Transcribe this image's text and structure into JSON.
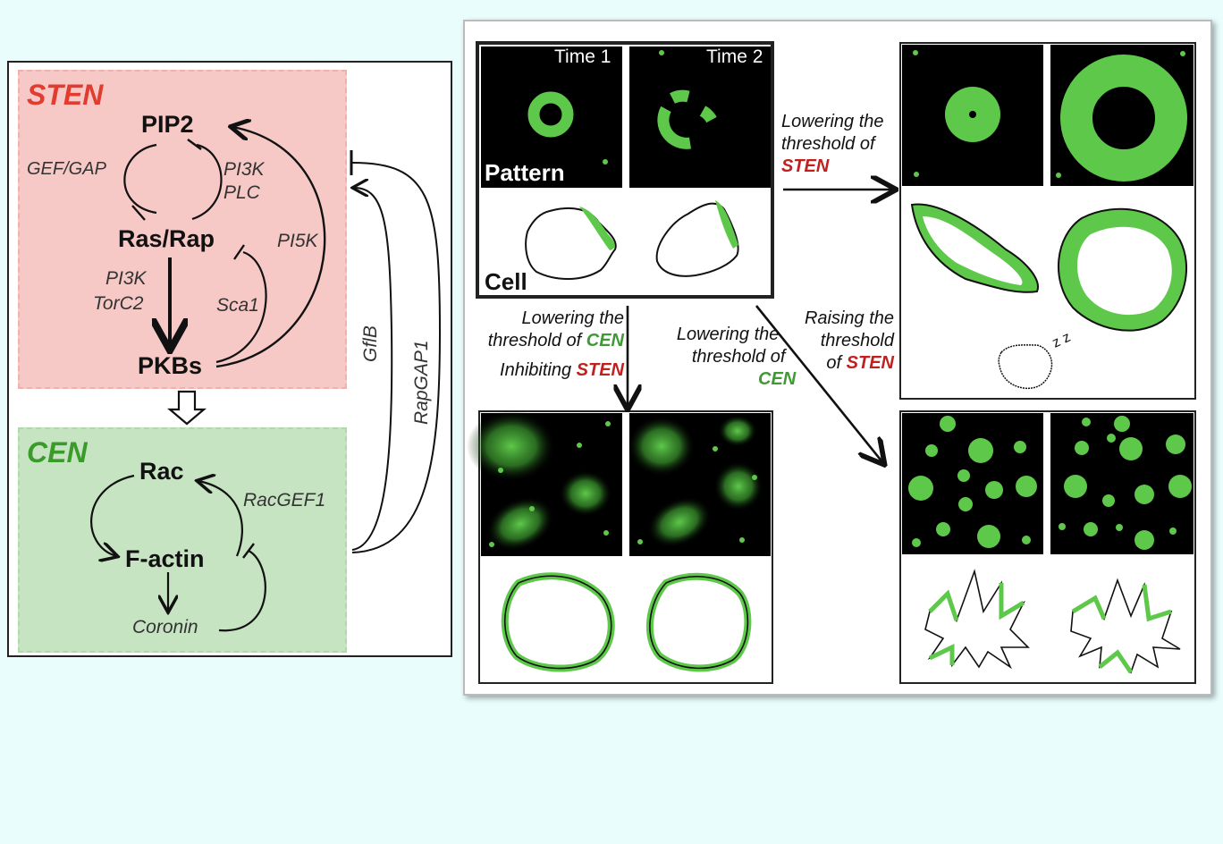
{
  "left": {
    "sten_title": "STEN",
    "cen_title": "CEN",
    "nodes": {
      "pip2": "PIP2",
      "rasrap": "Ras/Rap",
      "pkbs": "PKBs",
      "rac": "Rac",
      "factin": "F-actin",
      "coronin": "Coronin"
    },
    "edges": {
      "gefgap": "GEF/GAP",
      "pi3k_plc_1": "PI3K",
      "pi3k_plc_2": "PLC",
      "pi5k": "PI5K",
      "pi3k_torc2_1": "PI3K",
      "pi3k_torc2_2": "TorC2",
      "sca1": "Sca1",
      "racgef1": "RacGEF1",
      "gflb": "GflB",
      "rapgap1": "RapGAP1"
    },
    "colors": {
      "sten_bg": "#f6c8c6",
      "cen_bg": "#c6e4c2",
      "sten_title": "#e23b2f",
      "cen_title": "#3f9a35"
    }
  },
  "right": {
    "time1": "Time 1",
    "time2": "Time 2",
    "pattern": "Pattern",
    "cell": "Cell",
    "arrow_right": {
      "line1": "Lowering the",
      "line2": "threshold of",
      "emph": "STEN"
    },
    "arrow_down": {
      "line1": "Lowering the",
      "line2": "threshold of",
      "emph1": "CEN",
      "line3": "Inhibiting",
      "emph2": "STEN"
    },
    "arrow_diag_a": {
      "line1": "Lowering the",
      "line2": "threshold of",
      "emph": "CEN"
    },
    "arrow_diag_b": {
      "line1": "Raising the",
      "line2": "threshold",
      "line3": "of",
      "emph": "STEN"
    },
    "colors": {
      "green": "#5ec84a",
      "stenRed": "#c0201e",
      "cenGreen": "#3f9a35"
    }
  }
}
